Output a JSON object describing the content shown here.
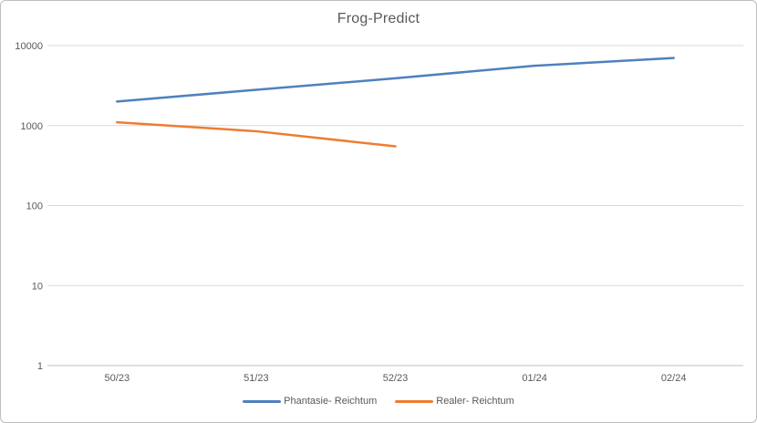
{
  "chart_data": {
    "type": "line",
    "title": "Frog-Predict",
    "categories": [
      "50/23",
      "51/23",
      "52/23",
      "01/24",
      "02/24"
    ],
    "series": [
      {
        "name": "Phantasie- Reichtum",
        "color": "#4f81bd",
        "values": [
          2000,
          2800,
          3900,
          5600,
          7000
        ]
      },
      {
        "name": "Realer- Reichtum",
        "color": "#ed7d31",
        "values": [
          1100,
          850,
          550,
          null,
          null
        ]
      }
    ],
    "y_axis": {
      "scale": "log",
      "min": 1,
      "max": 10000,
      "ticks": [
        1,
        10,
        100,
        10000,
        1000
      ],
      "tick_labels": [
        "1",
        "10",
        "100",
        "10000",
        "1000"
      ]
    },
    "x_axis": {
      "label": ""
    },
    "grid": true,
    "legend_position": "bottom",
    "colors": {
      "gridline": "#d9d9d9",
      "axis_line": "#bfbfbf",
      "tick_text": "#595959",
      "title_text": "#595959",
      "frame_border": "#bdbdbd",
      "background": "#ffffff"
    }
  }
}
